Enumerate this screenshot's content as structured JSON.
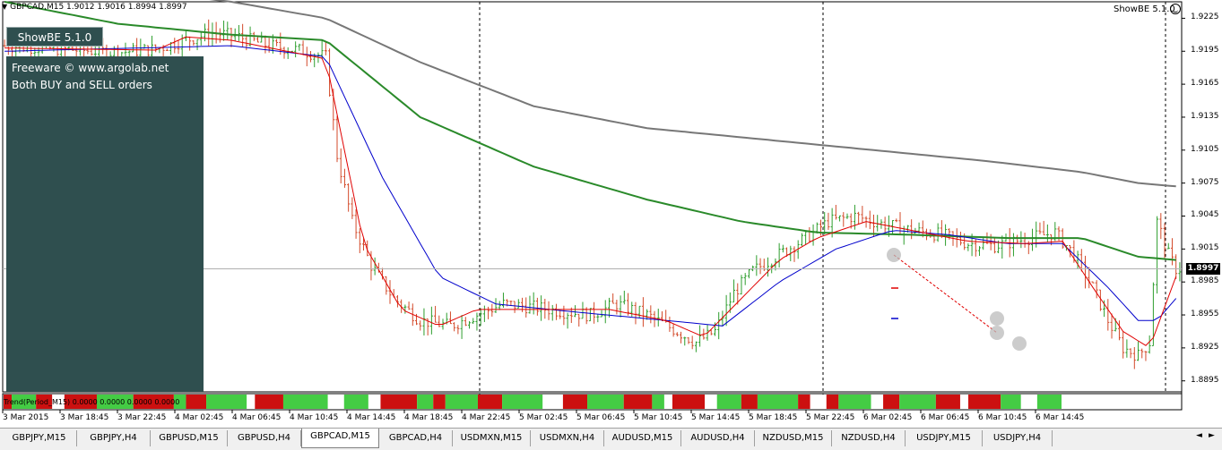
{
  "chart": {
    "title": "GBPCAD,M15  1.9012 1.9016 1.8994 1.8997",
    "ea_label": "ShowBE 5.1.0",
    "current_price": "1.8997",
    "price_labels": [
      "1.9225",
      "1.9195",
      "1.9165",
      "1.9135",
      "1.9105",
      "1.9075",
      "1.9045",
      "1.9015",
      "1.8985",
      "1.8955",
      "1.8925",
      "1.8895"
    ],
    "time_labels": [
      "3 Mar 2015",
      "3 Mar 18:45",
      "3 Mar 22:45",
      "4 Mar 02:45",
      "4 Mar 06:45",
      "4 Mar 10:45",
      "4 Mar 14:45",
      "4 Mar 18:45",
      "4 Mar 22:45",
      "5 Mar 02:45",
      "5 Mar 06:45",
      "5 Mar 10:45",
      "5 Mar 14:45",
      "5 Mar 18:45",
      "5 Mar 22:45",
      "6 Mar 02:45",
      "6 Mar 06:45",
      "6 Mar 10:45",
      "6 Mar 14:45"
    ],
    "indicator_label": "Trend(Period_M15) 0.0000 0.0000 0.0000 0.0000",
    "colors": {
      "bull": "#2e9e2e",
      "bear": "#d34a2a",
      "ma_fast": "#e00000",
      "ma_mid": "#0000cc",
      "ma_slow": "#2a8a2a",
      "ma_long": "#777777",
      "panel": "#2f4f4f"
    }
  },
  "overlay": {
    "button_label": "ShowBE 5.1.0",
    "line1": "Freeware © www.argolab.net",
    "line2": "Both BUY and SELL orders"
  },
  "tabs": [
    {
      "label": "GBPJPY,M15",
      "active": false
    },
    {
      "label": "GBPJPY,H4",
      "active": false
    },
    {
      "label": "GBPUSD,M15",
      "active": false
    },
    {
      "label": "GBPUSD,H4",
      "active": false
    },
    {
      "label": "GBPCAD,M15",
      "active": true
    },
    {
      "label": "GBPCAD,H4",
      "active": false
    },
    {
      "label": "USDMXN,M15",
      "active": false
    },
    {
      "label": "USDMXN,H4",
      "active": false
    },
    {
      "label": "AUDUSD,M15",
      "active": false
    },
    {
      "label": "AUDUSD,H4",
      "active": false
    },
    {
      "label": "NZDUSD,M15",
      "active": false
    },
    {
      "label": "NZDUSD,H4",
      "active": false
    },
    {
      "label": "USDJPY,M15",
      "active": false
    },
    {
      "label": "USDJPY,H4",
      "active": false
    }
  ],
  "chart_data": {
    "type": "candlestick",
    "symbol": "GBPCAD",
    "timeframe": "M15",
    "ylim": [
      1.8885,
      1.924
    ],
    "ohlc_last": {
      "open": 1.9012,
      "high": 1.9016,
      "low": 1.8994,
      "close": 1.8997
    },
    "price_path": [
      [
        0,
        1.92
      ],
      [
        10,
        1.9198
      ],
      [
        20,
        1.9196
      ],
      [
        30,
        1.9194
      ],
      [
        40,
        1.9197
      ],
      [
        48,
        1.9205
      ],
      [
        55,
        1.9212
      ],
      [
        62,
        1.9208
      ],
      [
        70,
        1.92
      ],
      [
        78,
        1.9196
      ],
      [
        85,
        1.919
      ],
      [
        88,
        1.91
      ],
      [
        92,
        1.904
      ],
      [
        97,
        1.9
      ],
      [
        103,
        1.897
      ],
      [
        110,
        1.895
      ],
      [
        118,
        1.8945
      ],
      [
        125,
        1.8955
      ],
      [
        132,
        1.8965
      ],
      [
        140,
        1.8962
      ],
      [
        148,
        1.8958
      ],
      [
        155,
        1.8955
      ],
      [
        162,
        1.8965
      ],
      [
        170,
        1.8955
      ],
      [
        178,
        1.894
      ],
      [
        183,
        1.893
      ],
      [
        188,
        1.894
      ],
      [
        193,
        1.8975
      ],
      [
        198,
        1.8995
      ],
      [
        205,
        1.901
      ],
      [
        212,
        1.9025
      ],
      [
        218,
        1.904
      ],
      [
        225,
        1.9045
      ],
      [
        232,
        1.9038
      ],
      [
        240,
        1.9032
      ],
      [
        248,
        1.9028
      ],
      [
        255,
        1.902
      ],
      [
        262,
        1.9018
      ],
      [
        270,
        1.9024
      ],
      [
        278,
        1.903
      ],
      [
        283,
        1.901
      ],
      [
        288,
        1.898
      ],
      [
        292,
        1.895
      ],
      [
        296,
        1.8925
      ],
      [
        300,
        1.8918
      ],
      [
        303,
        1.893
      ],
      [
        305,
        1.904
      ],
      [
        308,
        1.901
      ],
      [
        310,
        1.8997
      ]
    ],
    "ma_fast": [
      [
        0,
        1.9198
      ],
      [
        40,
        1.9196
      ],
      [
        48,
        1.9208
      ],
      [
        60,
        1.9205
      ],
      [
        85,
        1.9188
      ],
      [
        95,
        1.902
      ],
      [
        105,
        1.896
      ],
      [
        115,
        1.8945
      ],
      [
        125,
        1.896
      ],
      [
        140,
        1.896
      ],
      [
        160,
        1.896
      ],
      [
        175,
        1.895
      ],
      [
        185,
        1.8935
      ],
      [
        195,
        1.897
      ],
      [
        205,
        1.9005
      ],
      [
        215,
        1.9025
      ],
      [
        228,
        1.904
      ],
      [
        240,
        1.9032
      ],
      [
        255,
        1.9022
      ],
      [
        270,
        1.902
      ],
      [
        280,
        1.9022
      ],
      [
        288,
        1.898
      ],
      [
        296,
        1.894
      ],
      [
        303,
        1.8925
      ],
      [
        310,
        1.899
      ]
    ],
    "ma_mid": [
      [
        0,
        1.9195
      ],
      [
        60,
        1.92
      ],
      [
        85,
        1.919
      ],
      [
        100,
        1.908
      ],
      [
        115,
        1.899
      ],
      [
        130,
        1.8965
      ],
      [
        150,
        1.8958
      ],
      [
        175,
        1.895
      ],
      [
        190,
        1.8945
      ],
      [
        205,
        1.8985
      ],
      [
        220,
        1.9015
      ],
      [
        235,
        1.9032
      ],
      [
        250,
        1.9028
      ],
      [
        265,
        1.902
      ],
      [
        280,
        1.902
      ],
      [
        292,
        1.898
      ],
      [
        300,
        1.895
      ],
      [
        305,
        1.895
      ],
      [
        310,
        1.897
      ]
    ],
    "ma_slow": [
      [
        0,
        1.924
      ],
      [
        30,
        1.922
      ],
      [
        60,
        1.921
      ],
      [
        85,
        1.9205
      ],
      [
        110,
        1.9135
      ],
      [
        140,
        1.909
      ],
      [
        170,
        1.906
      ],
      [
        195,
        1.904
      ],
      [
        215,
        1.903
      ],
      [
        240,
        1.9028
      ],
      [
        265,
        1.9025
      ],
      [
        285,
        1.9025
      ],
      [
        300,
        1.9008
      ],
      [
        310,
        1.9005
      ]
    ],
    "ma_long": [
      [
        0,
        1.9265
      ],
      [
        60,
        1.924
      ],
      [
        85,
        1.9225
      ],
      [
        110,
        1.9185
      ],
      [
        140,
        1.9145
      ],
      [
        170,
        1.9125
      ],
      [
        200,
        1.9115
      ],
      [
        230,
        1.9105
      ],
      [
        260,
        1.9095
      ],
      [
        285,
        1.9085
      ],
      [
        300,
        1.9075
      ],
      [
        310,
        1.9072
      ]
    ],
    "trend_indicator_pattern": "r:2,g:6,r:4,w:3,r:8,g:9,r:10,g:3,r:5,g:10,w:2,r:7,g:11,w:4,g:6,w:3,r:9,g:4,r:3,g:8,r:6,g:10,w:5,r:6,g:9,r:7,g:3,w:2,r:8,w:3,g:6,r:4,g:10,r:3,w:4,r:3,g:8,w:3,r:4,g:9,r:6,w:2,r:8,g:5,w:4,g:6"
  }
}
